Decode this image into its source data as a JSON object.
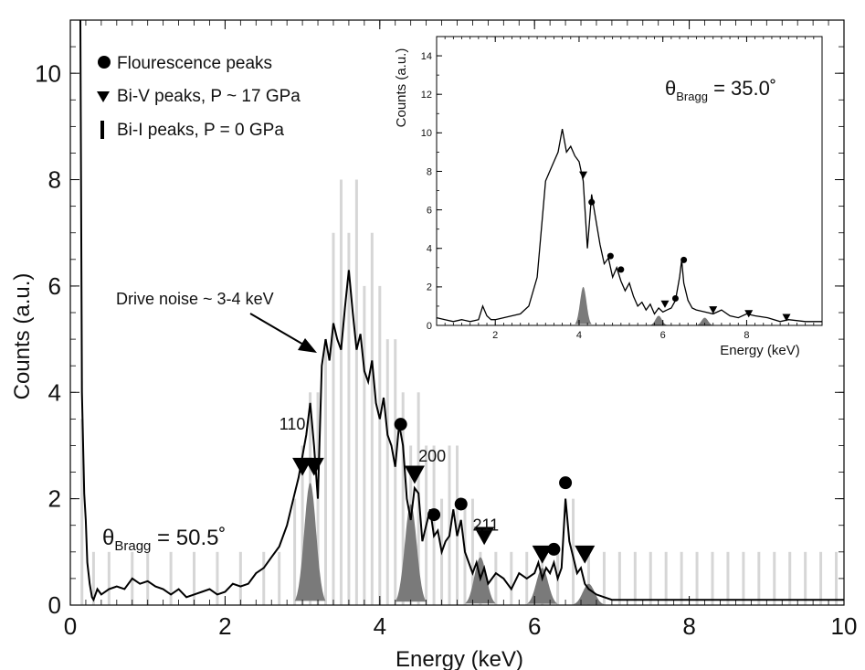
{
  "chart_data": [
    {
      "type": "line",
      "xlabel": "Energy (keV)",
      "ylabel": "Counts (a.u.)",
      "xlim": [
        0,
        10
      ],
      "ylim": [
        0,
        11
      ],
      "x_ticks": [
        "0",
        "2",
        "4",
        "6",
        "8",
        "10"
      ],
      "y_ticks": [
        "0",
        "2",
        "4",
        "6",
        "8",
        "10"
      ],
      "grid": false,
      "legend": {
        "position": "top-left",
        "entries": [
          {
            "marker": "circle",
            "label": "Flourescence peaks"
          },
          {
            "marker": "triangle-down",
            "label": "Bi-V peaks, P ~ 17 GPa"
          },
          {
            "marker": "bar",
            "label": "Bi-I peaks, P = 0 GPa"
          }
        ]
      },
      "theta_label": {
        "prefix": "θ",
        "sub": "Bragg",
        "value": " = 50.5˚"
      },
      "annotations": {
        "drive_noise": "Drive noise ~ 3-4 keV",
        "hkl": [
          {
            "label": "110",
            "x": 2.7,
            "y": 3.3
          },
          {
            "label": "200",
            "x": 4.5,
            "y": 2.7
          },
          {
            "label": "211",
            "x": 5.2,
            "y": 1.4
          }
        ]
      },
      "series": [
        {
          "style": "black-line",
          "x": [
            0.13,
            0.15,
            0.18,
            0.2,
            0.22,
            0.25,
            0.28,
            0.3,
            0.35,
            0.4,
            0.5,
            0.6,
            0.7,
            0.8,
            0.9,
            1.0,
            1.1,
            1.2,
            1.3,
            1.4,
            1.5,
            1.6,
            1.7,
            1.8,
            1.9,
            2.0,
            2.1,
            2.2,
            2.3,
            2.4,
            2.5,
            2.6,
            2.7,
            2.8,
            2.9,
            2.95,
            3.0,
            3.05,
            3.1,
            3.15,
            3.2,
            3.25,
            3.3,
            3.35,
            3.4,
            3.45,
            3.5,
            3.55,
            3.6,
            3.65,
            3.7,
            3.75,
            3.8,
            3.85,
            3.9,
            3.95,
            4.0,
            4.05,
            4.1,
            4.15,
            4.2,
            4.25,
            4.3,
            4.35,
            4.4,
            4.45,
            4.5,
            4.55,
            4.6,
            4.65,
            4.7,
            4.75,
            4.8,
            4.85,
            4.9,
            4.95,
            5.0,
            5.05,
            5.1,
            5.15,
            5.2,
            5.25,
            5.3,
            5.35,
            5.4,
            5.5,
            5.6,
            5.7,
            5.8,
            5.9,
            6.0,
            6.05,
            6.1,
            6.15,
            6.2,
            6.25,
            6.3,
            6.35,
            6.4,
            6.45,
            6.5,
            6.55,
            6.6,
            6.65,
            6.7,
            6.8,
            6.9,
            7.0,
            7.2,
            7.5,
            7.8,
            8.0,
            8.3,
            8.6,
            9.0,
            9.5,
            10.0
          ],
          "y": [
            11,
            4,
            2.1,
            1.6,
            0.8,
            0.4,
            0.15,
            0.1,
            0.3,
            0.2,
            0.3,
            0.35,
            0.3,
            0.5,
            0.4,
            0.45,
            0.35,
            0.3,
            0.2,
            0.3,
            0.15,
            0.2,
            0.25,
            0.3,
            0.2,
            0.25,
            0.4,
            0.35,
            0.4,
            0.6,
            0.7,
            0.9,
            1.1,
            1.5,
            2.1,
            2.4,
            2.8,
            3.2,
            3.8,
            3.0,
            2.0,
            4.5,
            5.0,
            4.6,
            5.3,
            5.0,
            4.8,
            5.6,
            6.3,
            5.5,
            4.8,
            5.1,
            4.4,
            4.2,
            4.6,
            3.8,
            3.5,
            3.9,
            3.2,
            3.0,
            2.6,
            3.4,
            3.0,
            2.0,
            1.6,
            2.2,
            2.1,
            1.2,
            1.5,
            1.8,
            1.3,
            1.4,
            1.0,
            1.2,
            1.3,
            1.8,
            1.3,
            1.6,
            1.0,
            0.8,
            0.6,
            0.8,
            0.5,
            0.7,
            0.4,
            0.6,
            0.5,
            0.3,
            0.6,
            0.5,
            0.6,
            0.8,
            0.5,
            0.7,
            0.6,
            0.8,
            0.5,
            0.7,
            2.0,
            1.2,
            0.9,
            0.6,
            0.7,
            0.4,
            0.3,
            0.2,
            0.15,
            0.1,
            0.1,
            0.1,
            0.1,
            0.1,
            0.1,
            0.1,
            0.1,
            0.1,
            0.1
          ]
        },
        {
          "style": "raw-gray",
          "x": [
            0.15,
            0.3,
            0.5,
            0.8,
            1.0,
            1.3,
            1.6,
            1.9,
            2.2,
            2.5,
            2.7,
            2.9,
            3.0,
            3.1,
            3.2,
            3.3,
            3.4,
            3.5,
            3.6,
            3.7,
            3.8,
            3.9,
            4.0,
            4.1,
            4.2,
            4.3,
            4.4,
            4.5,
            4.6,
            4.7,
            4.8,
            4.9,
            5.0,
            5.1,
            5.2,
            5.3,
            5.5,
            5.7,
            5.9,
            6.1,
            6.3,
            6.5,
            6.7,
            6.9,
            7.1,
            7.3,
            7.5,
            7.7,
            7.9,
            8.1,
            8.3,
            8.5,
            8.7,
            8.9,
            9.1,
            9.3,
            9.5,
            9.7,
            9.9
          ],
          "y": [
            3.5,
            1.0,
            1.0,
            1.0,
            1.0,
            1.0,
            1.0,
            1.0,
            1.0,
            1.0,
            1.0,
            2.0,
            3.0,
            4.0,
            4.0,
            5.0,
            7.0,
            8.0,
            7.0,
            8.0,
            6.0,
            7.0,
            6.0,
            5.0,
            5.0,
            4.0,
            3.0,
            4.0,
            3.0,
            3.0,
            2.0,
            3.0,
            3.0,
            2.0,
            2.0,
            1.0,
            1.0,
            1.0,
            1.0,
            1.0,
            1.0,
            2.0,
            1.0,
            1.0,
            1.0,
            1.0,
            1.0,
            1.0,
            1.0,
            1.0,
            1.0,
            1.0,
            1.0,
            1.0,
            1.0,
            1.0,
            1.0,
            1.0,
            1.0
          ]
        }
      ],
      "bi_i_peaks": [
        {
          "center": 3.1,
          "height": 2.3,
          "width": 0.2
        },
        {
          "center": 4.4,
          "height": 1.9,
          "width": 0.2
        },
        {
          "center": 5.3,
          "height": 0.9,
          "width": 0.2
        },
        {
          "center": 6.1,
          "height": 0.7,
          "width": 0.2
        },
        {
          "center": 6.7,
          "height": 0.4,
          "width": 0.2
        }
      ],
      "fluorescence_markers": [
        {
          "x": 4.27,
          "y": 3.4
        },
        {
          "x": 4.7,
          "y": 1.7
        },
        {
          "x": 5.05,
          "y": 1.9
        },
        {
          "x": 6.25,
          "y": 1.05
        },
        {
          "x": 6.4,
          "y": 2.3
        }
      ],
      "bi_v_markers": [
        {
          "x": 3.0,
          "y": 2.6
        },
        {
          "x": 3.15,
          "y": 2.6
        },
        {
          "x": 4.45,
          "y": 2.45
        },
        {
          "x": 5.35,
          "y": 1.3
        },
        {
          "x": 6.1,
          "y": 0.95
        },
        {
          "x": 6.65,
          "y": 0.95
        }
      ]
    },
    {
      "type": "line",
      "xlabel": "Energy (keV)",
      "ylabel": "Counts (a.u.)",
      "xlim": [
        0.6,
        9.8
      ],
      "ylim": [
        0,
        15
      ],
      "x_ticks": [
        "2",
        "4",
        "6",
        "8"
      ],
      "y_ticks": [
        "0",
        "2",
        "4",
        "6",
        "8",
        "10",
        "12",
        "14"
      ],
      "grid": false,
      "theta_label": {
        "prefix": "θ",
        "sub": "Bragg",
        "value": " = 35.0˚"
      },
      "series": [
        {
          "style": "black-line",
          "x": [
            0.6,
            0.8,
            1.0,
            1.2,
            1.4,
            1.6,
            1.7,
            1.8,
            1.9,
            2.0,
            2.2,
            2.4,
            2.6,
            2.8,
            3.0,
            3.1,
            3.2,
            3.3,
            3.4,
            3.5,
            3.6,
            3.7,
            3.8,
            3.9,
            4.0,
            4.1,
            4.2,
            4.3,
            4.4,
            4.5,
            4.6,
            4.7,
            4.8,
            4.9,
            5.0,
            5.1,
            5.2,
            5.3,
            5.4,
            5.5,
            5.6,
            5.7,
            5.8,
            5.9,
            6.0,
            6.1,
            6.2,
            6.3,
            6.4,
            6.45,
            6.5,
            6.6,
            6.7,
            6.8,
            7.0,
            7.2,
            7.4,
            7.6,
            7.8,
            8.0,
            8.2,
            8.5,
            8.8,
            9.0,
            9.4,
            9.8
          ],
          "y": [
            0.4,
            0.3,
            0.2,
            0.3,
            0.2,
            0.3,
            1.0,
            0.5,
            0.3,
            0.3,
            0.4,
            0.5,
            0.6,
            1.0,
            2.5,
            5.0,
            7.5,
            8.0,
            8.5,
            9.0,
            10.2,
            9.0,
            9.3,
            8.8,
            8.5,
            7.5,
            4.0,
            6.8,
            5.5,
            4.2,
            3.2,
            3.5,
            2.5,
            3.0,
            2.3,
            1.8,
            2.2,
            1.5,
            1.0,
            1.2,
            0.8,
            1.1,
            0.6,
            0.9,
            0.7,
            0.8,
            0.9,
            1.3,
            2.5,
            3.4,
            2.2,
            1.3,
            0.9,
            0.8,
            0.7,
            0.6,
            0.8,
            0.5,
            0.4,
            0.6,
            0.5,
            0.4,
            0.2,
            0.3,
            0.2,
            0.2
          ]
        }
      ],
      "bi_i_peaks": [
        {
          "center": 4.1,
          "height": 2.0,
          "width": 0.2
        },
        {
          "center": 5.9,
          "height": 0.5,
          "width": 0.2
        },
        {
          "center": 7.0,
          "height": 0.4,
          "width": 0.2
        }
      ],
      "fluorescence_markers": [
        {
          "x": 4.3,
          "y": 6.4
        },
        {
          "x": 4.75,
          "y": 3.6
        },
        {
          "x": 5.0,
          "y": 2.9
        },
        {
          "x": 6.3,
          "y": 1.4
        },
        {
          "x": 6.5,
          "y": 3.4
        }
      ],
      "bi_v_markers": [
        {
          "x": 4.1,
          "y": 7.8
        },
        {
          "x": 6.05,
          "y": 1.1
        },
        {
          "x": 7.2,
          "y": 0.8
        },
        {
          "x": 8.05,
          "y": 0.6
        },
        {
          "x": 8.95,
          "y": 0.4
        }
      ]
    }
  ]
}
